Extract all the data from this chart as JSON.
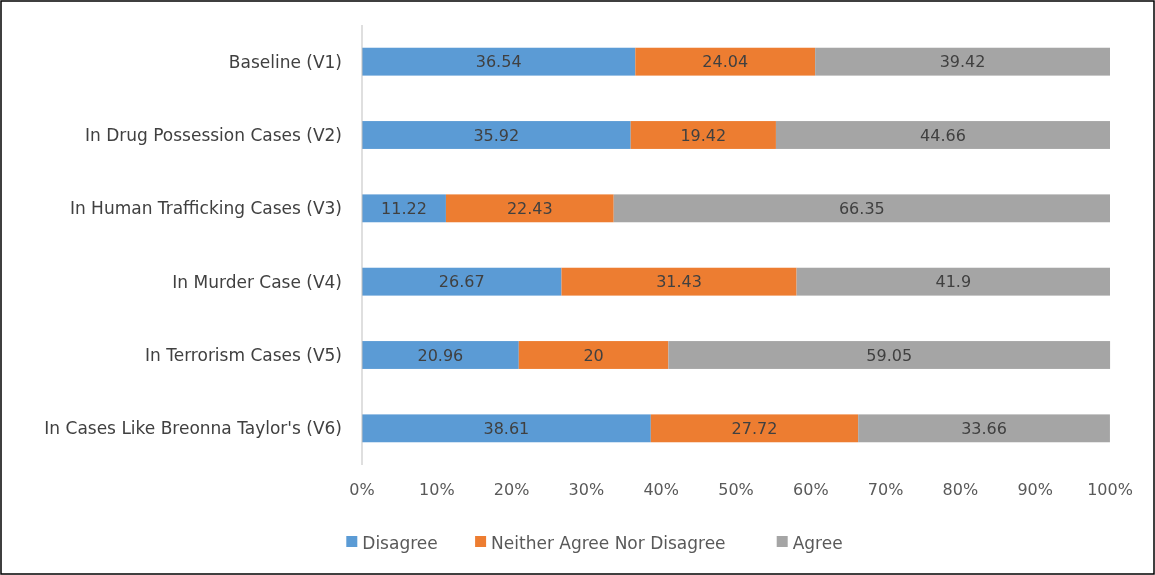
{
  "chart_data": {
    "type": "bar",
    "orientation": "horizontal",
    "stacked": true,
    "categories": [
      "Baseline (V1)",
      "In Drug Possession Cases (V2)",
      "In Human Trafficking Cases (V3)",
      "In Murder Case (V4)",
      "In Terrorism Cases (V5)",
      "In Cases Like Breonna Taylor's (V6)"
    ],
    "series": [
      {
        "name": "Disagree",
        "color": "#5b9bd5",
        "values": [
          36.54,
          35.92,
          11.22,
          26.67,
          20.96,
          38.61
        ]
      },
      {
        "name": "Neither Agree Nor Disagree",
        "color": "#ed7d31",
        "values": [
          24.04,
          19.42,
          22.43,
          31.43,
          20,
          27.72
        ]
      },
      {
        "name": "Agree",
        "color": "#a5a5a5",
        "values": [
          39.42,
          44.66,
          66.35,
          41.9,
          59.05,
          33.66
        ]
      }
    ],
    "xlim": [
      0,
      100
    ],
    "xticks": [
      {
        "value": 0,
        "label": "0%"
      },
      {
        "value": 10,
        "label": "10%"
      },
      {
        "value": 20,
        "label": "20%"
      },
      {
        "value": 30,
        "label": "30%"
      },
      {
        "value": 40,
        "label": "40%"
      },
      {
        "value": 50,
        "label": "50%"
      },
      {
        "value": 60,
        "label": "60%"
      },
      {
        "value": 70,
        "label": "70%"
      },
      {
        "value": 80,
        "label": "80%"
      },
      {
        "value": 90,
        "label": "90%"
      },
      {
        "value": 100,
        "label": "100%"
      }
    ],
    "data_labels": true,
    "legend": "bottom"
  }
}
